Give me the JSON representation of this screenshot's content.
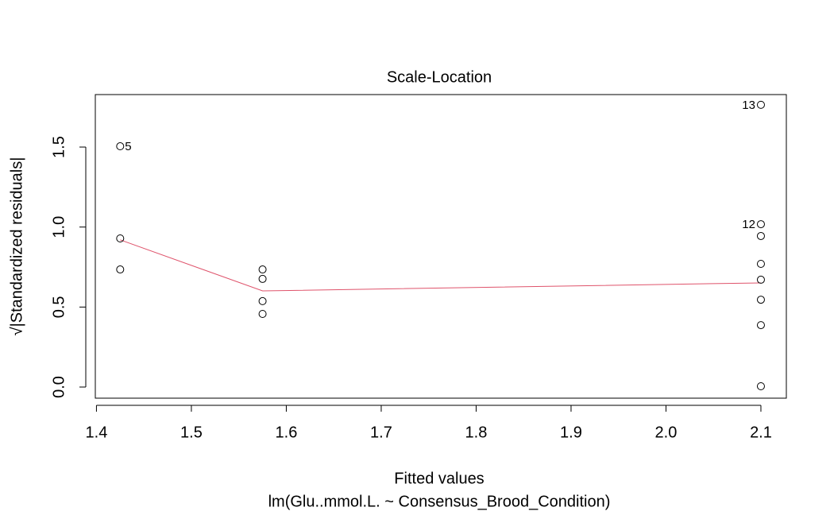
{
  "chart_data": {
    "type": "scatter",
    "title": "Scale-Location",
    "x_label": "Fitted values",
    "subtitle": "lm(Glu..mmol.L. ~ Consensus_Brood_Condition)",
    "y_label": "√|Standardized residuals|",
    "x": [
      1.425,
      1.425,
      1.425,
      1.575,
      1.575,
      1.575,
      1.575,
      2.1,
      2.1,
      2.1,
      2.1,
      2.1,
      2.1,
      2.1,
      2.1
    ],
    "values": [
      1.505,
      0.929,
      0.735,
      0.735,
      0.676,
      0.537,
      0.457,
      1.764,
      1.018,
      0.944,
      0.77,
      0.671,
      0.546,
      0.387,
      0.005
    ],
    "point_labels": [
      "5",
      null,
      null,
      null,
      null,
      null,
      null,
      "13",
      "12",
      null,
      null,
      null,
      null,
      null,
      null
    ],
    "color": "#000000",
    "smooth": {
      "color": "#df536b",
      "x": [
        1.425,
        1.575,
        2.1
      ],
      "values": [
        0.92,
        0.601,
        0.651
      ]
    },
    "xlim": [
      1.3988,
      2.1268
    ],
    "ylim": [
      -0.0695,
      1.828
    ],
    "xticks": [
      1.4,
      1.5,
      1.6,
      1.7,
      1.8,
      1.9,
      {
        "value": 2.0,
        "label": "2.0"
      },
      2.1
    ],
    "yticks": [
      {
        "value": 0.0,
        "label": "0.0"
      },
      0.5,
      {
        "value": 1.0,
        "label": "1.0"
      },
      1.5
    ],
    "grid": false
  }
}
